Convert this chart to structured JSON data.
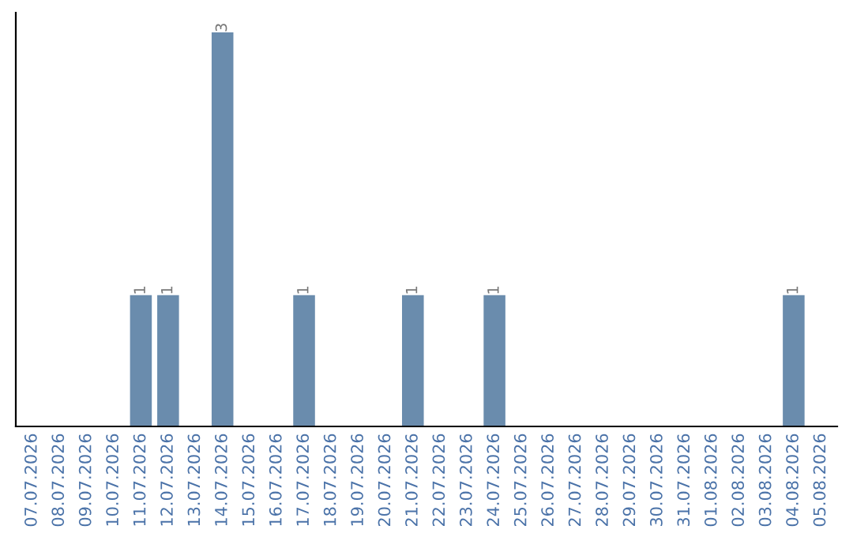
{
  "chart_data": {
    "type": "bar",
    "categories": [
      "07.07.2026",
      "08.07.2026",
      "09.07.2026",
      "10.07.2026",
      "11.07.2026",
      "12.07.2026",
      "13.07.2026",
      "14.07.2026",
      "15.07.2026",
      "16.07.2026",
      "17.07.2026",
      "18.07.2026",
      "19.07.2026",
      "20.07.2026",
      "21.07.2026",
      "22.07.2026",
      "23.07.2026",
      "24.07.2026",
      "25.07.2026",
      "26.07.2026",
      "27.07.2026",
      "28.07.2026",
      "29.07.2026",
      "30.07.2026",
      "31.07.2026",
      "01.08.2026",
      "02.08.2026",
      "03.08.2026",
      "04.08.2026",
      "05.08.2026"
    ],
    "values": [
      0,
      0,
      0,
      0,
      1,
      1,
      0,
      3,
      0,
      0,
      1,
      0,
      0,
      0,
      1,
      0,
      0,
      1,
      0,
      0,
      0,
      0,
      0,
      0,
      0,
      0,
      0,
      0,
      1,
      0
    ],
    "color": "#6a8cad",
    "value_labels": [
      null,
      null,
      null,
      null,
      "1",
      "1",
      null,
      "3",
      null,
      null,
      "1",
      null,
      null,
      null,
      "1",
      null,
      null,
      "1",
      null,
      null,
      null,
      null,
      null,
      null,
      null,
      null,
      null,
      null,
      "1",
      null
    ],
    "grid": false,
    "legend": false
  }
}
